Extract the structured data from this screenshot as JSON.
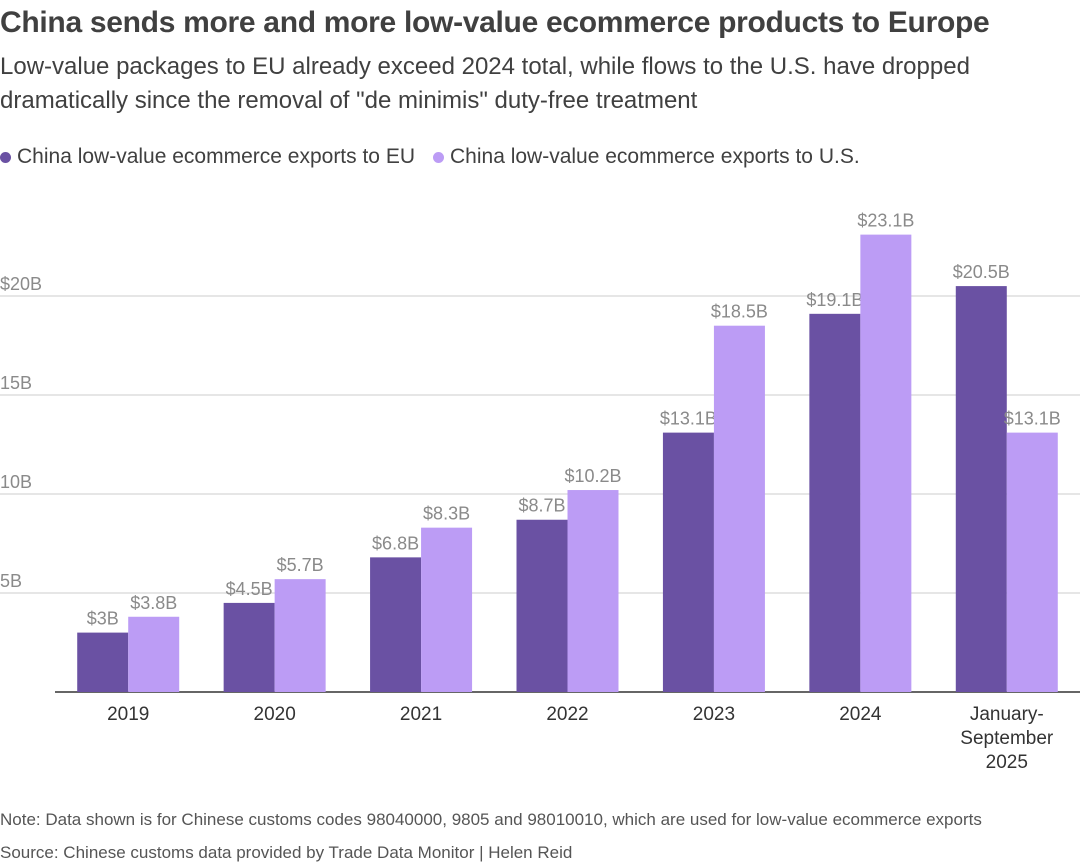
{
  "header": {
    "title": "China sends more and more low-value ecommerce products to Europe",
    "subtitle_line1": "Low-value packages to EU already exceed 2024 total, while flows to the U.S. have dropped",
    "subtitle_line2": "dramatically since the removal of \"de minimis\" duty-free treatment"
  },
  "legend": [
    {
      "label": "China low-value ecommerce exports to EU",
      "color": "#6a51a3"
    },
    {
      "label": "China low-value ecommerce exports to U.S.",
      "color": "#bc9cf5"
    }
  ],
  "footer": {
    "note": "Note: Data shown is for Chinese customs codes 98040000, 9805 and 98010010, which are used for low-value ecommerce exports",
    "source": "Source: Chinese customs data provided by Trade Data Monitor | Helen Reid"
  },
  "chart_data": {
    "type": "bar",
    "categories": [
      "2019",
      "2020",
      "2021",
      "2022",
      "2023",
      "2024",
      "January-September 2025"
    ],
    "category_lines": [
      [
        "2019"
      ],
      [
        "2020"
      ],
      [
        "2021"
      ],
      [
        "2022"
      ],
      [
        "2023"
      ],
      [
        "2024"
      ],
      [
        "January-",
        "September",
        "2025"
      ]
    ],
    "series": [
      {
        "name": "China low-value ecommerce exports to EU",
        "values": [
          3,
          4.5,
          6.8,
          8.7,
          13.1,
          19.1,
          20.5
        ],
        "labels": [
          "$3B",
          "$4.5B",
          "$6.8B",
          "$8.7B",
          "$13.1B",
          "$19.1B",
          "$20.5B"
        ],
        "color": "#6a51a3"
      },
      {
        "name": "China low-value ecommerce exports to U.S.",
        "values": [
          3.8,
          5.7,
          8.3,
          10.2,
          18.5,
          23.1,
          13.1
        ],
        "labels": [
          "$3.8B",
          "$5.7B",
          "$8.3B",
          "$10.2B",
          "$18.5B",
          "$23.1B",
          "$13.1B"
        ],
        "color": "#bc9cf5"
      }
    ],
    "y_ticks": [
      5,
      10,
      15,
      20
    ],
    "y_tick_labels": [
      "5B",
      "10B",
      "15B",
      "$20B"
    ],
    "ylim": [
      0,
      25
    ],
    "grid": true,
    "legend_position": "top-left",
    "gridline_color": "#cccccc",
    "label_color": "#8a8a8a"
  }
}
